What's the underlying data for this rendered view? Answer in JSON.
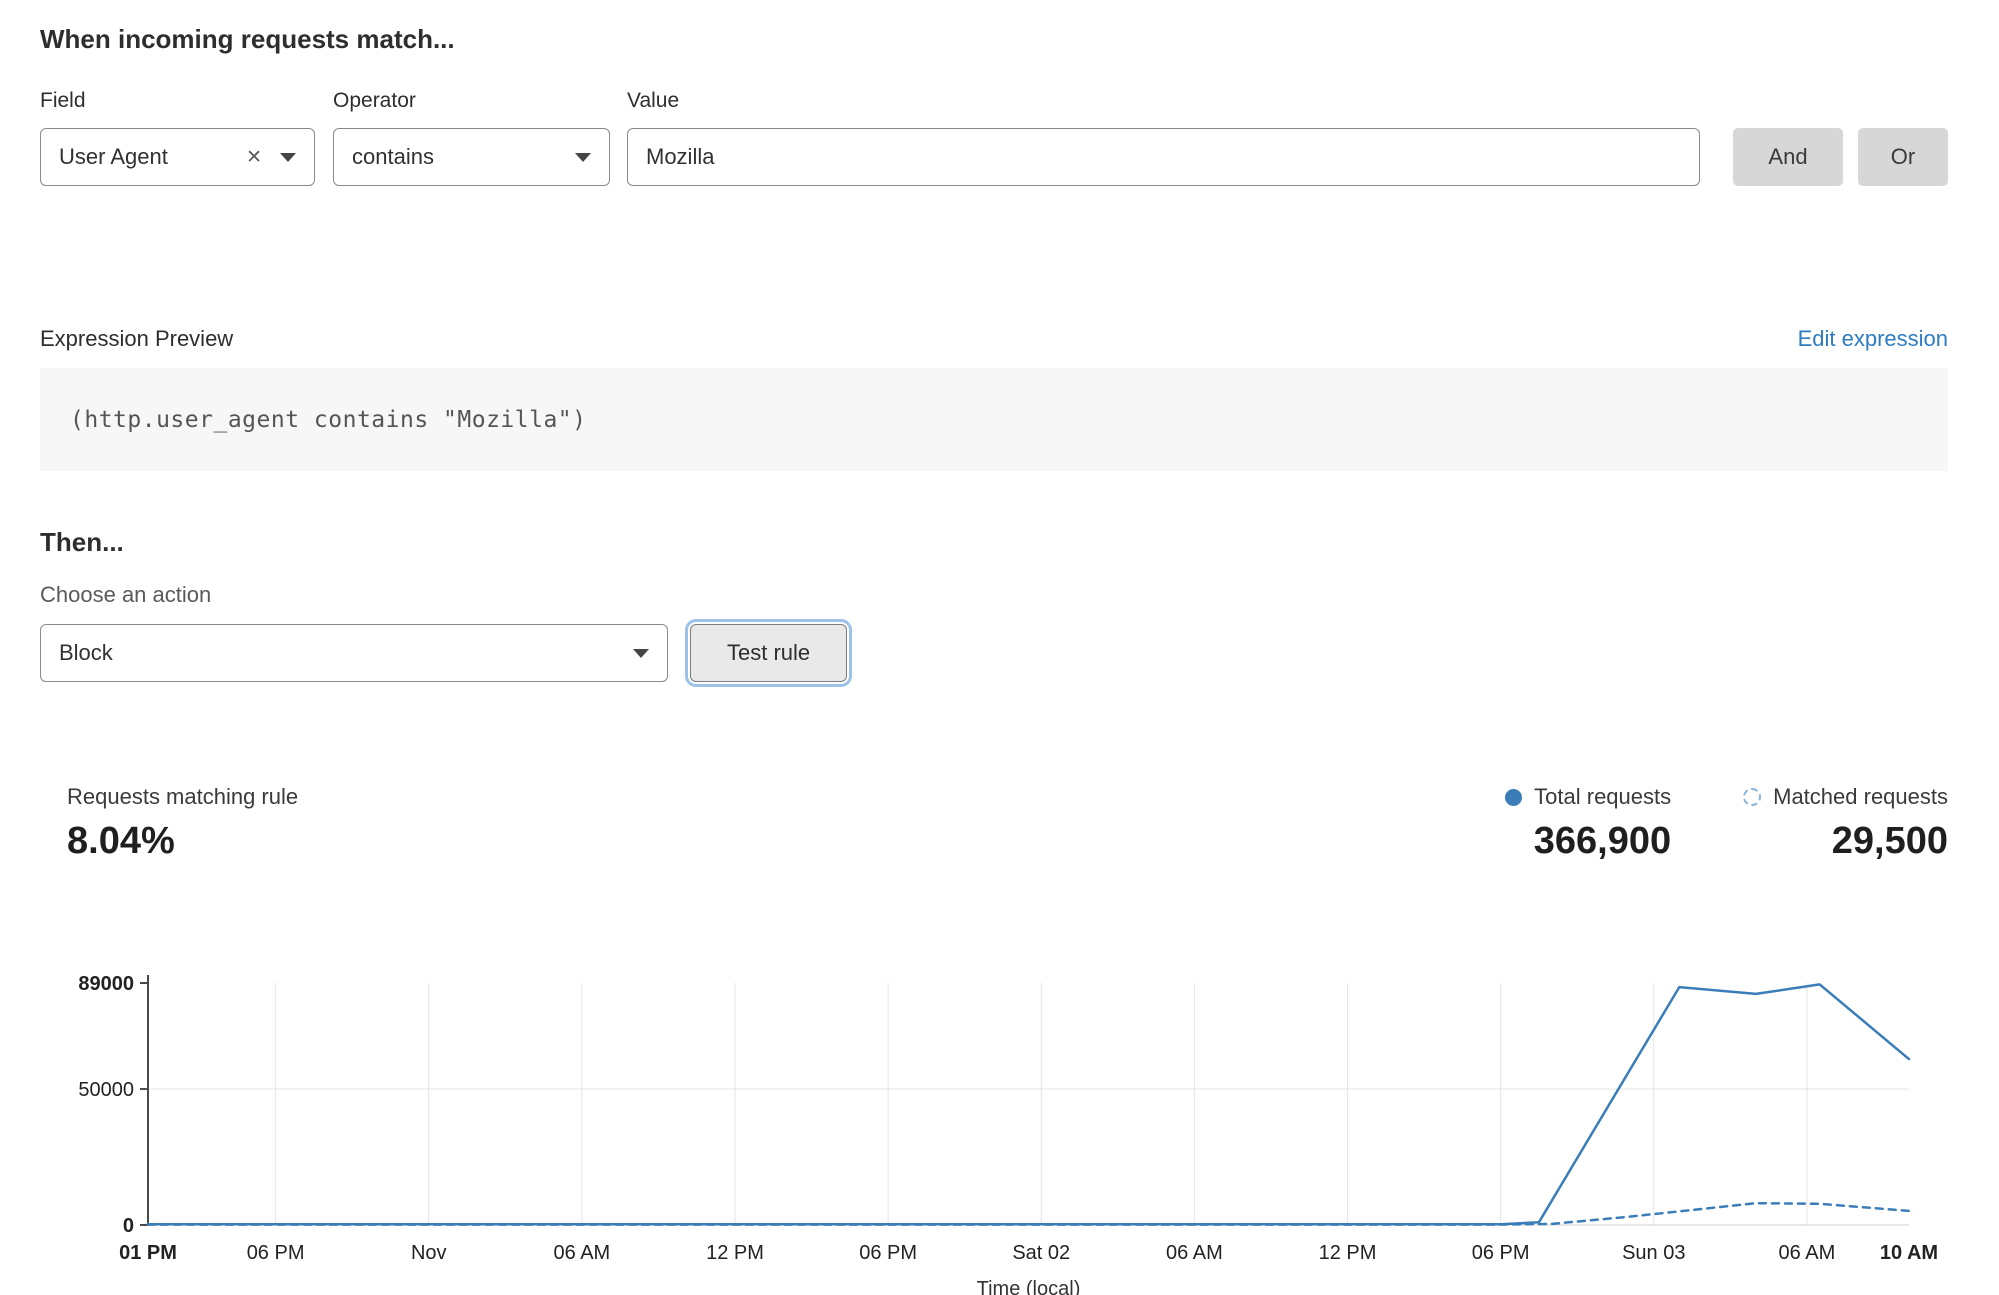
{
  "colors": {
    "accent_blue": "#3b7db8",
    "link_blue": "#2e7cc3",
    "legend_dashed_blue": "#85b4da",
    "button_gray": "#d7d7d7",
    "code_bg": "#f7f7f7"
  },
  "match_section": {
    "title": "When incoming requests match...",
    "field": {
      "label": "Field",
      "value": "User Agent"
    },
    "operator": {
      "label": "Operator",
      "value": "contains"
    },
    "value": {
      "label": "Value",
      "value": "Mozilla"
    },
    "and_label": "And",
    "or_label": "Or"
  },
  "expression": {
    "label": "Expression Preview",
    "edit_link": "Edit expression",
    "code": "(http.user_agent contains \"Mozilla\")"
  },
  "action_section": {
    "title": "Then...",
    "choose_label": "Choose an action",
    "action_value": "Block",
    "test_button": "Test rule"
  },
  "stats": {
    "matching_label": "Requests matching rule",
    "matching_value": "8.04%",
    "total_label": "Total requests",
    "total_value": "366,900",
    "matched_label": "Matched requests",
    "matched_value": "29,500"
  },
  "chart_data": {
    "type": "line",
    "title": "",
    "xlabel": "Time (local)",
    "ylabel": "",
    "x_unit": "hours_from_start",
    "x_range": [
      0,
      69
    ],
    "ylim": [
      0,
      89000
    ],
    "grid": true,
    "legend_position": "above-right",
    "yticks": [
      {
        "value": 0,
        "label": "0",
        "bold": true
      },
      {
        "value": 50000,
        "label": "50000",
        "bold": false
      },
      {
        "value": 89000,
        "label": "89000",
        "bold": true
      }
    ],
    "xticks": [
      {
        "hour": 0,
        "label": "01 PM",
        "bold": true
      },
      {
        "hour": 5,
        "label": "06 PM",
        "bold": false
      },
      {
        "hour": 11,
        "label": "Nov",
        "bold": false
      },
      {
        "hour": 17,
        "label": "06 AM",
        "bold": false
      },
      {
        "hour": 23,
        "label": "12 PM",
        "bold": false
      },
      {
        "hour": 29,
        "label": "06 PM",
        "bold": false
      },
      {
        "hour": 35,
        "label": "Sat 02",
        "bold": false
      },
      {
        "hour": 41,
        "label": "06 AM",
        "bold": false
      },
      {
        "hour": 47,
        "label": "12 PM",
        "bold": false
      },
      {
        "hour": 53,
        "label": "06 PM",
        "bold": false
      },
      {
        "hour": 59,
        "label": "Sun 03",
        "bold": false
      },
      {
        "hour": 65,
        "label": "06 AM",
        "bold": false
      },
      {
        "hour": 69,
        "label": "10 AM",
        "bold": true
      }
    ],
    "series": [
      {
        "name": "Total requests",
        "style": "solid",
        "color": "#3b7db8",
        "points": [
          [
            0,
            300
          ],
          [
            5,
            250
          ],
          [
            11,
            300
          ],
          [
            17,
            250
          ],
          [
            23,
            300
          ],
          [
            29,
            250
          ],
          [
            35,
            300
          ],
          [
            41,
            250
          ],
          [
            47,
            300
          ],
          [
            53,
            300
          ],
          [
            54.5,
            1000
          ],
          [
            60,
            87500
          ],
          [
            63,
            85000
          ],
          [
            65.5,
            88500
          ],
          [
            69,
            61000
          ]
        ]
      },
      {
        "name": "Matched requests",
        "style": "dashed",
        "color": "#3b7db8",
        "points": [
          [
            0,
            150
          ],
          [
            5,
            150
          ],
          [
            11,
            150
          ],
          [
            17,
            150
          ],
          [
            23,
            150
          ],
          [
            29,
            150
          ],
          [
            35,
            150
          ],
          [
            41,
            150
          ],
          [
            47,
            150
          ],
          [
            53,
            150
          ],
          [
            55,
            400
          ],
          [
            58,
            3000
          ],
          [
            60,
            5000
          ],
          [
            63,
            8000
          ],
          [
            65.5,
            7800
          ],
          [
            69,
            5200
          ]
        ]
      }
    ]
  }
}
